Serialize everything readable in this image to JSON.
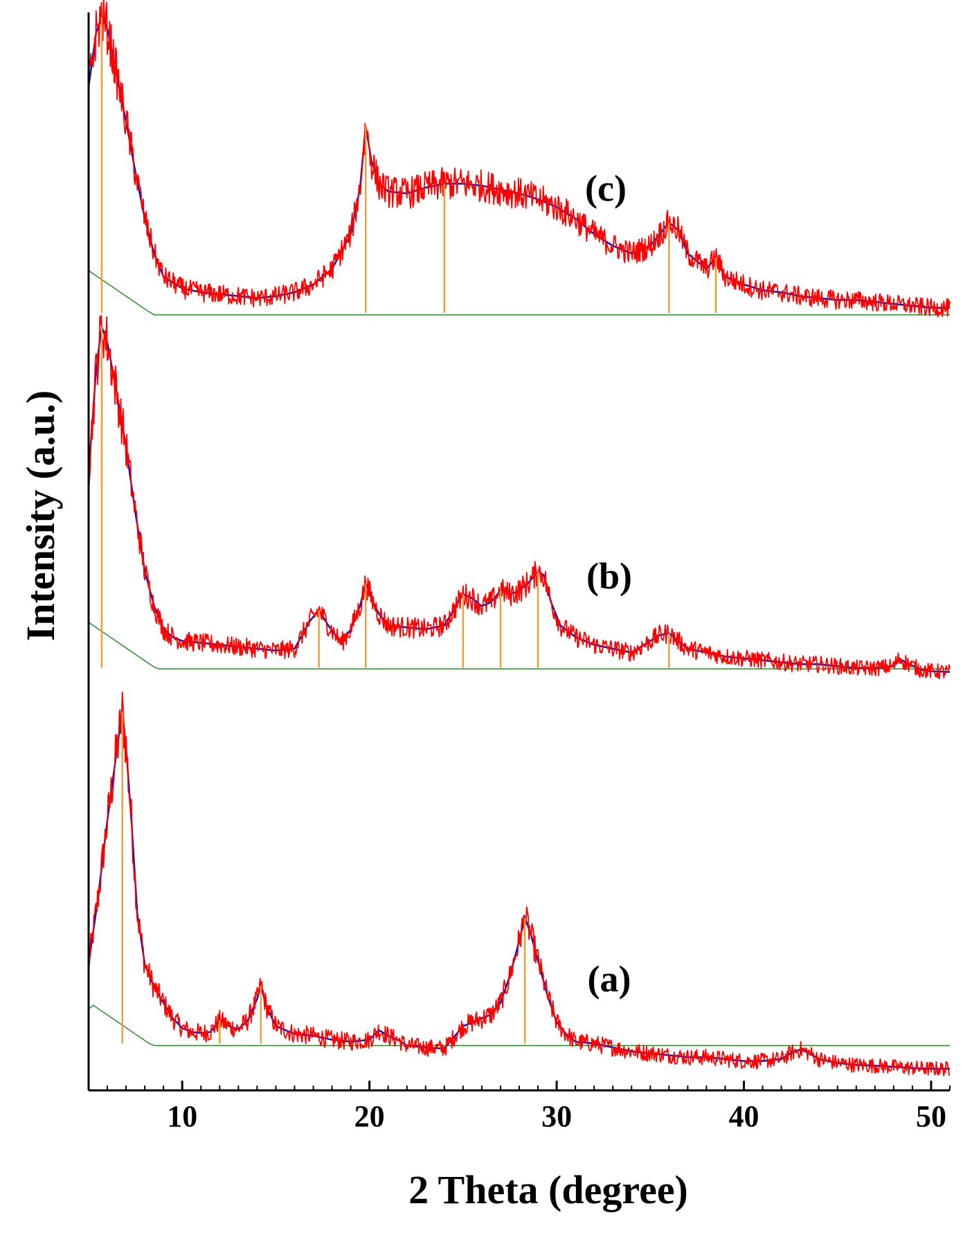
{
  "chart_data": {
    "type": "line",
    "xlabel": "2 Theta (degree)",
    "ylabel": "Intensity (a.u.)",
    "xlim": [
      5,
      51
    ],
    "x_ticks": [
      10,
      20,
      30,
      40,
      50
    ],
    "x_tick_labels": [
      "10",
      "20",
      "30",
      "40",
      "50"
    ],
    "y_ticks": [],
    "grid": false,
    "colors": {
      "measured": "#ff0000",
      "fit": "#1010b0",
      "background": "#2e8b2e",
      "peak_marker": "#f0a030",
      "axis": "#000000"
    },
    "series": [
      {
        "label": "(a)",
        "baseline": 1.0,
        "x": [
          5,
          5.5,
          6,
          6.5,
          6.8,
          7,
          7.3,
          7.6,
          8,
          8.5,
          9,
          9.5,
          10,
          10.5,
          11,
          11.5,
          12,
          12.5,
          13,
          13.5,
          14,
          14.2,
          14.5,
          15,
          16,
          17,
          18,
          19,
          20,
          20.5,
          21,
          21.5,
          22,
          23,
          24,
          25,
          26,
          26.5,
          27,
          27.5,
          28,
          28.3,
          28.6,
          29,
          29.5,
          30,
          30.5,
          31,
          32,
          33,
          34,
          35,
          36,
          37,
          38,
          39,
          40,
          41,
          42,
          42.5,
          43,
          43.5,
          44,
          45,
          46,
          47,
          48,
          49,
          50,
          51
        ],
        "y": [
          2.9,
          4.6,
          6.6,
          8.4,
          9.4,
          8.5,
          6.5,
          4.2,
          2.9,
          2.3,
          1.9,
          1.5,
          1.25,
          1.15,
          1.12,
          1.15,
          1.45,
          1.3,
          1.22,
          1.45,
          2.0,
          2.35,
          1.8,
          1.3,
          1.1,
          1.05,
          0.95,
          0.9,
          0.95,
          1.2,
          1.05,
          0.95,
          0.8,
          0.75,
          0.72,
          1.3,
          1.5,
          1.6,
          1.9,
          2.6,
          3.5,
          4.1,
          3.7,
          3.0,
          2.1,
          1.4,
          1.1,
          0.9,
          0.85,
          0.75,
          0.65,
          0.6,
          0.55,
          0.5,
          0.5,
          0.45,
          0.4,
          0.4,
          0.45,
          0.6,
          0.7,
          0.6,
          0.45,
          0.35,
          0.3,
          0.28,
          0.25,
          0.22,
          0.2,
          0.2
        ]
      },
      {
        "label": "(b)",
        "baseline": 0.6,
        "x": [
          5,
          5.4,
          5.7,
          6,
          6.5,
          7,
          7.5,
          8,
          8.5,
          9,
          9.5,
          10,
          11,
          12,
          13,
          14,
          15,
          16,
          16.8,
          17.3,
          17.8,
          18.5,
          19,
          19.5,
          19.8,
          20.1,
          20.5,
          21,
          22,
          23,
          24,
          24.5,
          25,
          25.5,
          26,
          26.5,
          27,
          27.5,
          28,
          28.5,
          29,
          29.3,
          29.7,
          30.2,
          31,
          32,
          33,
          34,
          35,
          35.5,
          36,
          36.5,
          37,
          38,
          39,
          40,
          41,
          42,
          43,
          44,
          45,
          46,
          47,
          48,
          48.3,
          48.8,
          49.5,
          50,
          51
        ],
        "y": [
          5.5,
          8.2,
          9.3,
          8.9,
          7.6,
          6.2,
          4.5,
          3.0,
          2.1,
          1.5,
          1.3,
          1.2,
          1.15,
          1.1,
          1.05,
          1.0,
          0.95,
          1.0,
          1.7,
          2.0,
          1.6,
          1.15,
          1.5,
          2.1,
          2.7,
          2.3,
          1.9,
          1.6,
          1.55,
          1.5,
          1.6,
          2.0,
          2.4,
          2.3,
          2.1,
          2.2,
          2.5,
          2.4,
          2.5,
          2.7,
          3.0,
          2.9,
          2.2,
          1.6,
          1.3,
          1.1,
          1.0,
          0.9,
          1.2,
          1.35,
          1.4,
          1.2,
          1.0,
          0.9,
          0.8,
          0.75,
          0.7,
          0.65,
          0.6,
          0.6,
          0.55,
          0.5,
          0.5,
          0.55,
          0.75,
          0.6,
          0.45,
          0.42,
          0.4
        ]
      },
      {
        "label": "(c)",
        "baseline": 0.9,
        "x": [
          5,
          5.4,
          5.7,
          6,
          6.5,
          7,
          7.5,
          8,
          8.5,
          9,
          10,
          11,
          12,
          13,
          14,
          15,
          16,
          17,
          18,
          19,
          19.5,
          19.8,
          20.1,
          20.5,
          21,
          22,
          23,
          24,
          25,
          26,
          27,
          28,
          29,
          30,
          31,
          32,
          33,
          34,
          35,
          35.5,
          36,
          36.5,
          37,
          38,
          38.5,
          39,
          40,
          41,
          42,
          43,
          44,
          45,
          46,
          47,
          48,
          49,
          50,
          51
        ],
        "y": [
          6.6,
          8.0,
          8.4,
          8.1,
          6.9,
          5.7,
          4.4,
          3.2,
          2.3,
          1.7,
          1.4,
          1.3,
          1.25,
          1.2,
          1.15,
          1.2,
          1.3,
          1.5,
          1.9,
          2.8,
          4.0,
          5.6,
          4.7,
          4.1,
          3.9,
          3.85,
          4.0,
          4.1,
          4.1,
          4.05,
          3.95,
          3.85,
          3.7,
          3.5,
          3.2,
          2.8,
          2.5,
          2.3,
          2.5,
          2.8,
          3.1,
          2.9,
          2.3,
          1.9,
          2.2,
          1.7,
          1.5,
          1.35,
          1.3,
          1.2,
          1.15,
          1.1,
          1.1,
          1.05,
          1.0,
          0.95,
          0.9,
          0.9
        ]
      }
    ]
  }
}
